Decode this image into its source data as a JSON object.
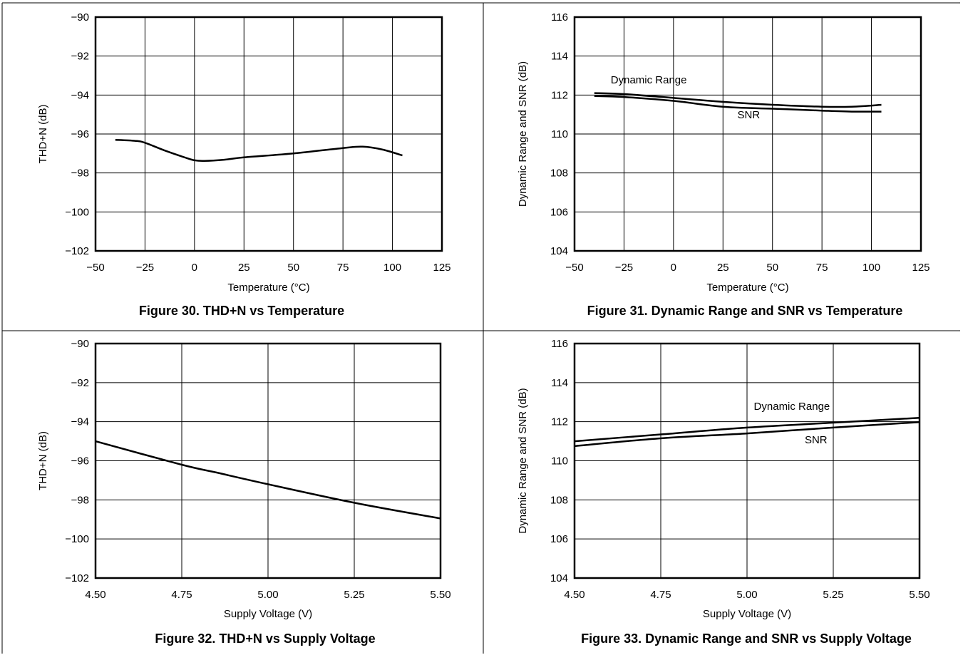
{
  "chart_data": [
    {
      "type": "line",
      "title": "Figure 30.  THD+N vs Temperature",
      "xlabel": "Temperature (°C)",
      "ylabel": "THD+N (dB)",
      "xlim": [
        -50,
        125
      ],
      "ylim": [
        -102,
        -90
      ],
      "xticks": [
        -50,
        -25,
        0,
        25,
        50,
        75,
        100,
        125
      ],
      "yticks": [
        -102,
        -100,
        -98,
        -96,
        -94,
        -92,
        -90
      ],
      "xtick_labels": [
        "−50",
        "−25",
        "0",
        "25",
        "50",
        "75",
        "100",
        "125"
      ],
      "ytick_labels": [
        "−102",
        "−100",
        "−98",
        "−96",
        "−94",
        "−92",
        "−90"
      ],
      "grid": true,
      "series": [
        {
          "label": "",
          "x": [
            -40,
            -30,
            -25,
            -15,
            -5,
            0,
            5,
            15,
            25,
            50,
            75,
            85,
            95,
            105
          ],
          "y": [
            -96.3,
            -96.35,
            -96.45,
            -96.85,
            -97.2,
            -97.35,
            -97.38,
            -97.32,
            -97.2,
            -97.0,
            -96.72,
            -96.65,
            -96.8,
            -97.1
          ]
        }
      ],
      "annotations": []
    },
    {
      "type": "line",
      "title": "Figure 31. Dynamic Range and SNR vs Temperature",
      "xlabel": "Temperature (°C)",
      "ylabel": "Dynamic Range and SNR (dB)",
      "xlim": [
        -50,
        125
      ],
      "ylim": [
        104,
        116
      ],
      "xticks": [
        -50,
        -25,
        0,
        25,
        50,
        75,
        100,
        125
      ],
      "yticks": [
        104,
        106,
        108,
        110,
        112,
        114,
        116
      ],
      "xtick_labels": [
        "−50",
        "−25",
        "0",
        "25",
        "50",
        "75",
        "100",
        "125"
      ],
      "ytick_labels": [
        "104",
        "106",
        "108",
        "110",
        "112",
        "114",
        "116"
      ],
      "grid": true,
      "series": [
        {
          "label": "Dynamic Range",
          "x": [
            -40,
            -25,
            0,
            25,
            50,
            75,
            90,
            105
          ],
          "y": [
            112.1,
            112.05,
            111.85,
            111.65,
            111.5,
            111.4,
            111.4,
            111.5
          ]
        },
        {
          "label": "SNR",
          "x": [
            -40,
            -25,
            0,
            25,
            50,
            75,
            90,
            105
          ],
          "y": [
            111.95,
            111.9,
            111.7,
            111.4,
            111.3,
            111.2,
            111.15,
            111.15
          ]
        }
      ],
      "annotations": [
        {
          "text": "Dynamic Range",
          "x": -12.5,
          "y": 112.6
        },
        {
          "text": "SNR",
          "x": 38,
          "y": 110.8
        }
      ]
    },
    {
      "type": "line",
      "title": "Figure 32. THD+N vs Supply Voltage",
      "xlabel": "Supply Voltage (V)",
      "ylabel": "THD+N (dB)",
      "xlim": [
        4.5,
        5.5
      ],
      "ylim": [
        -102,
        -90
      ],
      "xticks": [
        4.5,
        4.75,
        5.0,
        5.25,
        5.5
      ],
      "yticks": [
        -102,
        -100,
        -98,
        -96,
        -94,
        -92,
        -90
      ],
      "xtick_labels": [
        "4.50",
        "4.75",
        "5.00",
        "5.25",
        "5.50"
      ],
      "ytick_labels": [
        "−102",
        "−100",
        "−98",
        "−96",
        "−94",
        "−92",
        "−90"
      ],
      "grid": true,
      "series": [
        {
          "label": "",
          "x": [
            4.5,
            4.75,
            4.85,
            5.0,
            5.25,
            5.5
          ],
          "y": [
            -95.0,
            -96.2,
            -96.6,
            -97.2,
            -98.15,
            -98.95
          ]
        }
      ],
      "annotations": []
    },
    {
      "type": "line",
      "title": "Figure 33. Dynamic Range and SNR vs Supply Voltage",
      "xlabel": "Supply Voltage (V)",
      "ylabel": "Dynamic Range and SNR (dB)",
      "xlim": [
        4.5,
        5.5
      ],
      "ylim": [
        104,
        116
      ],
      "xticks": [
        4.5,
        4.75,
        5.0,
        5.25,
        5.5
      ],
      "yticks": [
        104,
        106,
        108,
        110,
        112,
        114,
        116
      ],
      "xtick_labels": [
        "4.50",
        "4.75",
        "5.00",
        "5.25",
        "5.50"
      ],
      "ytick_labels": [
        "104",
        "106",
        "108",
        "110",
        "112",
        "114",
        "116"
      ],
      "grid": true,
      "series": [
        {
          "label": "Dynamic Range",
          "x": [
            4.5,
            4.75,
            5.0,
            5.25,
            5.5
          ],
          "y": [
            111.0,
            111.35,
            111.7,
            111.95,
            112.2
          ]
        },
        {
          "label": "SNR",
          "x": [
            4.5,
            4.75,
            5.0,
            5.25,
            5.5
          ],
          "y": [
            110.75,
            111.15,
            111.4,
            111.7,
            111.98
          ]
        }
      ],
      "annotations": [
        {
          "text": "Dynamic Range",
          "x": 5.13,
          "y": 112.6
        },
        {
          "text": "SNR",
          "x": 5.2,
          "y": 110.9
        }
      ]
    }
  ]
}
